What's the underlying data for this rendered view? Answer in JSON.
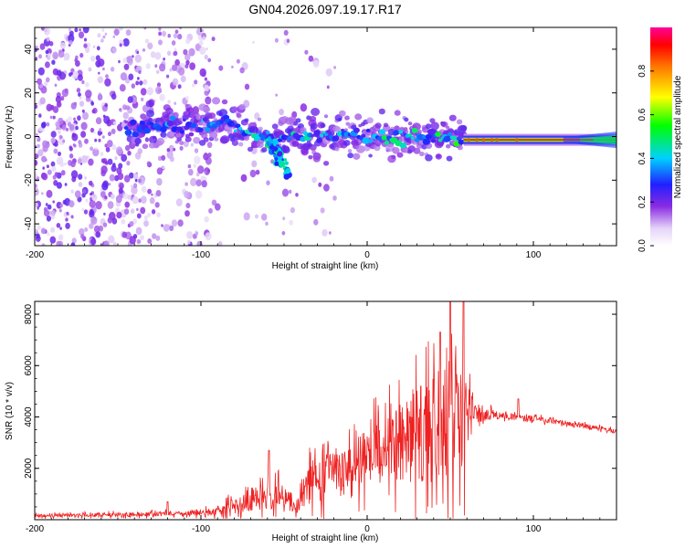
{
  "title": "GN04.2026.097.19.17.R17",
  "chart_data": [
    {
      "type": "heatmap",
      "xlabel": "Height of straight line (km)",
      "ylabel": "Frequency (Hz)",
      "xlim": [
        -200,
        150
      ],
      "ylim": [
        -50,
        50
      ],
      "xticks": [
        -200,
        -100,
        0,
        100
      ],
      "yticks": [
        -40,
        -20,
        0,
        20,
        40
      ],
      "colorbar": {
        "label": "Normalized spectral amplitude",
        "range": [
          0,
          1
        ],
        "ticks": [
          "0.0",
          "0.2",
          "0.4",
          "0.6",
          "0.8"
        ]
      },
      "ridge": [
        {
          "x": -140,
          "f": 4,
          "amp": 0.35
        },
        {
          "x": -120,
          "f": 5,
          "amp": 0.38
        },
        {
          "x": -100,
          "f": 4,
          "amp": 0.4
        },
        {
          "x": -85,
          "f": 7,
          "amp": 0.42
        },
        {
          "x": -75,
          "f": 3,
          "amp": 0.45
        },
        {
          "x": -65,
          "f": 0,
          "amp": 0.45
        },
        {
          "x": -55,
          "f": -2,
          "amp": 0.48
        },
        {
          "x": -45,
          "f": 1,
          "amp": 0.45
        },
        {
          "x": -30,
          "f": 0,
          "amp": 0.45
        },
        {
          "x": -15,
          "f": 1,
          "amp": 0.5
        },
        {
          "x": 0,
          "f": 0,
          "amp": 0.5
        },
        {
          "x": 15,
          "f": -1,
          "amp": 0.5
        },
        {
          "x": 30,
          "f": 0,
          "amp": 0.5
        },
        {
          "x": 45,
          "f": 0,
          "amp": 0.5
        },
        {
          "x": 57,
          "f": -1,
          "amp": 0.55
        },
        {
          "x": 60,
          "f": -1.5,
          "amp": 0.95
        },
        {
          "x": 100,
          "f": -1.5,
          "amp": 1.0
        },
        {
          "x": 130,
          "f": -1.5,
          "amp": 0.95
        },
        {
          "x": 150,
          "f": -1.5,
          "amp": 0.6
        }
      ],
      "branch": [
        {
          "x": -60,
          "f": -2
        },
        {
          "x": -54,
          "f": -8
        },
        {
          "x": -50,
          "f": -13
        },
        {
          "x": -47,
          "f": -17
        }
      ]
    },
    {
      "type": "line",
      "xlabel": "Height of straight line (km)",
      "ylabel": "SNR (10 * v/v)",
      "xlim": [
        -200,
        150
      ],
      "ylim": [
        0,
        8500
      ],
      "xticks": [
        -200,
        -100,
        0,
        100
      ],
      "yticks": [
        2000,
        4000,
        6000,
        8000
      ],
      "color": "#ee2222",
      "envelope": [
        {
          "x": -200,
          "base": 150,
          "amp": 120
        },
        {
          "x": -150,
          "base": 200,
          "amp": 150
        },
        {
          "x": -100,
          "base": 250,
          "amp": 200
        },
        {
          "x": -85,
          "base": 400,
          "amp": 500
        },
        {
          "x": -70,
          "base": 800,
          "amp": 900
        },
        {
          "x": -55,
          "base": 900,
          "amp": 1100
        },
        {
          "x": -45,
          "base": 700,
          "amp": 900
        },
        {
          "x": -35,
          "base": 1200,
          "amp": 1600
        },
        {
          "x": -20,
          "base": 1900,
          "amp": 1800
        },
        {
          "x": -5,
          "base": 2300,
          "amp": 2000
        },
        {
          "x": 10,
          "base": 2800,
          "amp": 2400
        },
        {
          "x": 20,
          "base": 3000,
          "amp": 3000
        },
        {
          "x": 30,
          "base": 3200,
          "amp": 3800
        },
        {
          "x": 40,
          "base": 3500,
          "amp": 4200
        },
        {
          "x": 50,
          "base": 3700,
          "amp": 4600
        },
        {
          "x": 58,
          "base": 3900,
          "amp": 4200
        },
        {
          "x": 64,
          "base": 4200,
          "amp": 900
        },
        {
          "x": 80,
          "base": 4050,
          "amp": 250
        },
        {
          "x": 100,
          "base": 3950,
          "amp": 200
        },
        {
          "x": 120,
          "base": 3750,
          "amp": 180
        },
        {
          "x": 150,
          "base": 3450,
          "amp": 160
        }
      ],
      "peaks": [
        {
          "x": 50,
          "y": 8500
        },
        {
          "x": 58,
          "y": 8500
        },
        {
          "x": 44,
          "y": 7300
        },
        {
          "x": 91,
          "y": 4700
        },
        {
          "x": -59,
          "y": 2700
        },
        {
          "x": -120,
          "y": 700
        }
      ]
    }
  ]
}
